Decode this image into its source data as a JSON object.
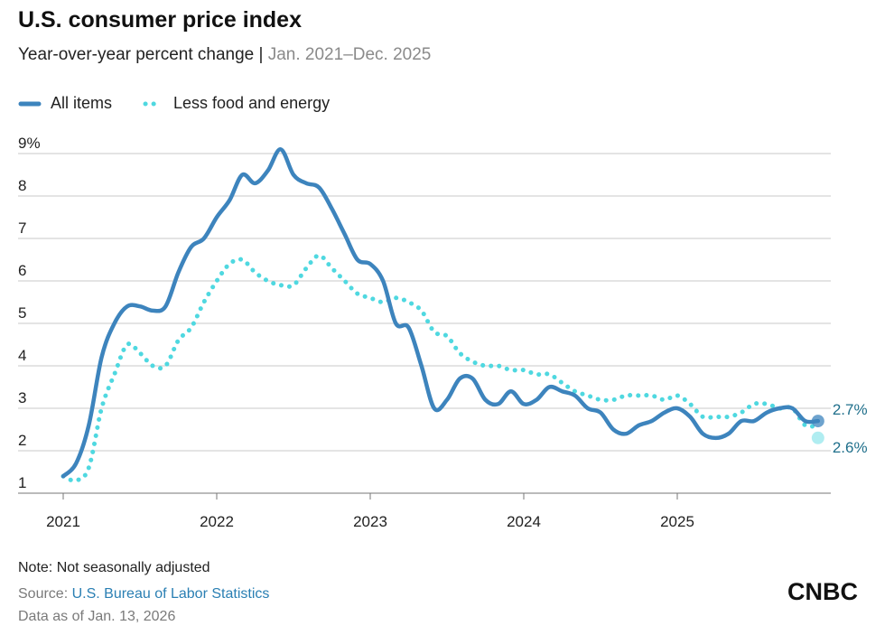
{
  "header": {
    "title": "U.S. consumer price index",
    "subtitle": "Year-over-year percent change",
    "separator": " | ",
    "subtitle_range": "Jan. 2021–Dec. 2025"
  },
  "legend": [
    {
      "label": "All items",
      "style": "solid",
      "color": "#3d84bd"
    },
    {
      "label": "Less food and energy",
      "style": "dotted",
      "color": "#4fd8e0"
    }
  ],
  "footer": {
    "note": "Note: Not seasonally adjusted",
    "source_prefix": "Source: ",
    "source_link": "U.S. Bureau of Labor Statistics",
    "data_as_of": "Data as of Jan. 13, 2026",
    "logo_text": "CNBC"
  },
  "chart_data": {
    "type": "line",
    "title": "U.S. consumer price index",
    "subtitle": "Year-over-year percent change | Jan. 2021–Dec. 2025",
    "x_start": "2021-01",
    "x_end": "2025-12",
    "x_ticks": [
      "2021",
      "2022",
      "2023",
      "2024",
      "2025"
    ],
    "y_ticks": [
      "1",
      "2",
      "3",
      "4",
      "5",
      "6",
      "7",
      "8",
      "9%"
    ],
    "ylim": [
      1,
      9
    ],
    "grid": true,
    "legend_position": "top-left",
    "series": [
      {
        "name": "All items",
        "style": "solid",
        "color": "#3d84bd",
        "end_label": "2.7%",
        "values": [
          1.4,
          1.7,
          2.6,
          4.2,
          5.0,
          5.4,
          5.4,
          5.3,
          5.4,
          6.2,
          6.8,
          7.0,
          7.5,
          7.9,
          8.5,
          8.3,
          8.6,
          9.1,
          8.5,
          8.3,
          8.2,
          7.7,
          7.1,
          6.5,
          6.4,
          6.0,
          5.0,
          4.9,
          4.0,
          3.0,
          3.2,
          3.7,
          3.7,
          3.2,
          3.1,
          3.4,
          3.1,
          3.2,
          3.5,
          3.4,
          3.3,
          3.0,
          2.9,
          2.5,
          2.4,
          2.6,
          2.7,
          2.9,
          3.0,
          2.8,
          2.4,
          2.3,
          2.4,
          2.7,
          2.7,
          2.9,
          3.0,
          3.0,
          2.7,
          2.7
        ]
      },
      {
        "name": "Less food and energy",
        "style": "dotted",
        "color": "#4fd8e0",
        "end_label": "2.6%",
        "values": [
          1.4,
          1.3,
          1.6,
          3.0,
          3.8,
          4.5,
          4.3,
          4.0,
          4.0,
          4.6,
          4.9,
          5.5,
          6.0,
          6.4,
          6.5,
          6.2,
          6.0,
          5.9,
          5.9,
          6.3,
          6.6,
          6.3,
          6.0,
          5.7,
          5.6,
          5.5,
          5.6,
          5.5,
          5.3,
          4.8,
          4.7,
          4.3,
          4.1,
          4.0,
          4.0,
          3.9,
          3.9,
          3.8,
          3.8,
          3.6,
          3.4,
          3.3,
          3.2,
          3.2,
          3.3,
          3.3,
          3.3,
          3.2,
          3.3,
          3.1,
          2.8,
          2.8,
          2.8,
          2.9,
          3.1,
          3.1,
          3.0,
          3.0,
          2.6,
          2.6
        ]
      }
    ]
  }
}
